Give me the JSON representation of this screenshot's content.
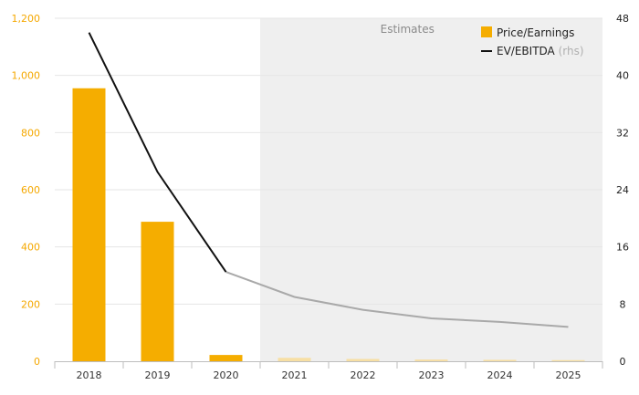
{
  "chart_data": {
    "type": "bar",
    "categories": [
      "2018",
      "2019",
      "2020",
      "2021",
      "2022",
      "2023",
      "2024",
      "2025"
    ],
    "series": [
      {
        "name": "Price/Earnings",
        "kind": "bar",
        "axis": "left",
        "values": [
          955,
          488,
          22,
          12,
          8,
          6,
          5,
          4
        ],
        "estimate_from_index": 3,
        "color": "#f5ad00",
        "estimate_color": "#f7dfa4"
      },
      {
        "name": "EV/EBITDA",
        "kind": "line",
        "axis": "right",
        "values": [
          46,
          26.5,
          12.5,
          9,
          7.2,
          6,
          5.5,
          4.8
        ],
        "estimate_from_index": 2,
        "color": "#111111",
        "estimate_color": "#a9a9a9"
      }
    ],
    "y_left": {
      "lim": [
        0,
        1200
      ],
      "ticks": [
        0,
        200,
        400,
        600,
        800,
        1000,
        1200
      ],
      "tick_labels": [
        "0",
        "200",
        "400",
        "600",
        "800",
        "1,000",
        "1,200"
      ]
    },
    "y_right": {
      "lim": [
        0,
        48
      ],
      "ticks": [
        0,
        8,
        16,
        24,
        32,
        40,
        48
      ],
      "tick_labels": [
        "0",
        "8",
        "16",
        "24",
        "32",
        "40",
        "48"
      ]
    },
    "estimates_region": {
      "label": "Estimates",
      "start_between": [
        "2020",
        "2021"
      ],
      "shade_color": "#efefef"
    },
    "legend": {
      "placement": "top-right",
      "items": [
        {
          "label": "Price/Earnings",
          "symbol": "square",
          "color": "#f5ad00"
        },
        {
          "label": "EV/EBITDA",
          "note": "(rhs)",
          "symbol": "line",
          "color": "#111111"
        }
      ]
    },
    "grid": {
      "horizontal": true,
      "color": "#e6e6e6"
    },
    "title": "",
    "xlabel": "",
    "ylabel": ""
  }
}
